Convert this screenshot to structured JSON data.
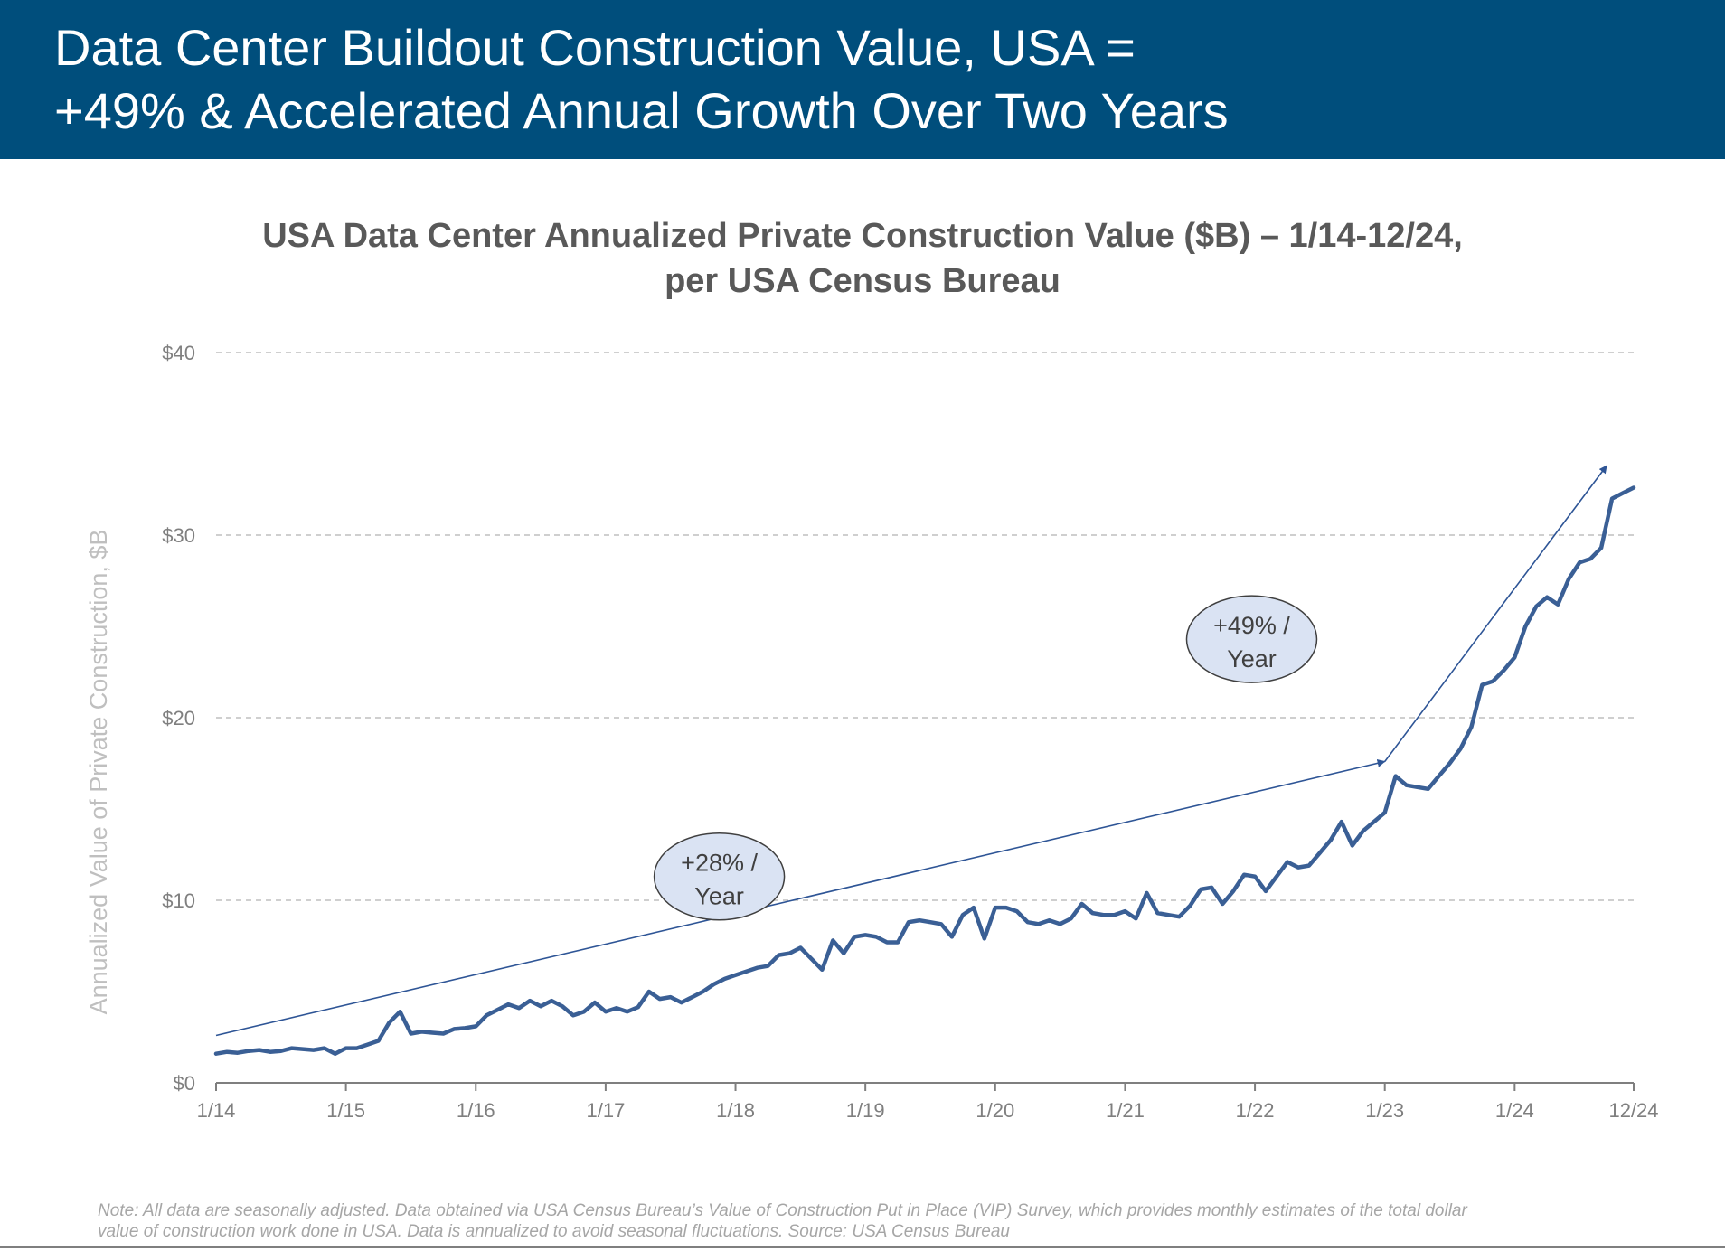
{
  "header": {
    "title_line1": "Data Center Buildout Construction Value, USA =",
    "title_line2": "+49% & Accelerated Annual Growth Over Two Years",
    "background_color": "#004e7c"
  },
  "chart_data": {
    "type": "line",
    "title_line1": "USA Data Center Annualized Private Construction Value ($B) – 1/14-12/24,",
    "title_line2": "per USA Census Bureau",
    "xlabel": "",
    "ylabel": "Annualized Value of Private Construction, $B",
    "ylim": [
      0,
      40
    ],
    "y_ticks": [
      0,
      10,
      20,
      30,
      40
    ],
    "y_tick_labels": [
      "$0",
      "$10",
      "$20",
      "$30",
      "$40"
    ],
    "grid": "horizontal dashed",
    "x_start": "1/14",
    "x_end": "12/24",
    "x_tick_labels": [
      "1/14",
      "1/15",
      "1/16",
      "1/17",
      "1/18",
      "1/19",
      "1/20",
      "1/21",
      "1/22",
      "1/23",
      "1/24",
      "12/24"
    ],
    "x_tick_month_index": [
      0,
      12,
      24,
      36,
      48,
      60,
      72,
      84,
      96,
      108,
      120,
      131
    ],
    "series": [
      {
        "name": "USA Data Center Annualized Private Construction Value ($B)",
        "color": "#3a5f95",
        "values": [
          1.6,
          1.7,
          1.65,
          1.75,
          1.8,
          1.7,
          1.75,
          1.9,
          1.85,
          1.8,
          1.9,
          1.6,
          1.9,
          1.9,
          2.1,
          2.3,
          3.3,
          3.9,
          2.7,
          2.8,
          2.75,
          2.7,
          2.95,
          3.0,
          3.1,
          3.7,
          4.0,
          4.3,
          4.1,
          4.5,
          4.2,
          4.5,
          4.2,
          3.7,
          3.9,
          4.4,
          3.9,
          4.1,
          3.9,
          4.15,
          5.0,
          4.6,
          4.7,
          4.4,
          4.7,
          5.0,
          5.4,
          5.7,
          5.9,
          6.1,
          6.3,
          6.4,
          7.0,
          7.1,
          7.4,
          6.8,
          6.2,
          7.8,
          7.1,
          8.0,
          8.1,
          8.0,
          7.7,
          7.7,
          8.8,
          8.9,
          8.8,
          8.7,
          8.0,
          9.2,
          9.6,
          7.9,
          9.6,
          9.6,
          9.4,
          8.8,
          8.7,
          8.9,
          8.7,
          9.0,
          9.8,
          9.3,
          9.2,
          9.2,
          9.4,
          9.0,
          10.4,
          9.3,
          9.2,
          9.1,
          9.7,
          10.6,
          10.7,
          9.8,
          10.5,
          11.4,
          11.3,
          10.5,
          11.3,
          12.1,
          11.8,
          11.9,
          12.6,
          13.3,
          14.3,
          13.0,
          13.8,
          14.3,
          14.8,
          16.8,
          16.3,
          16.2,
          16.1,
          16.8,
          17.5,
          18.3,
          19.5,
          21.8,
          22.0,
          22.6,
          23.3,
          25.0,
          26.1,
          26.6,
          26.2,
          27.6,
          28.5,
          28.7,
          29.3,
          32.0,
          32.3,
          32.6
        ]
      }
    ],
    "annotations": [
      {
        "text_line1": "+28% /",
        "text_line2": "Year",
        "trend_start": [
          0,
          2.6
        ],
        "trend_end": [
          108,
          17.6
        ],
        "label_at": [
          46.5,
          11.3
        ]
      },
      {
        "text_line1": "+49% /",
        "text_line2": "Year",
        "trend_start": [
          108,
          17.6
        ],
        "trend_end": [
          128.5,
          33.8
        ],
        "label_at": [
          95.7,
          24.3
        ]
      }
    ],
    "annotation_fill": "#dae3f3",
    "trend_color": "#2e5596",
    "axis_text_color": "#7f7f7f",
    "ylabel_color": "#bfbfbf"
  },
  "footnote": {
    "line1": "Note: All data are seasonally adjusted. Data obtained via USA Census Bureau’s Value of Construction Put in Place (VIP) Survey, which provides monthly estimates of the total dollar",
    "line2": "value of construction work done in USA. Data is annualized to avoid seasonal fluctuations. Source: USA Census Bureau"
  }
}
